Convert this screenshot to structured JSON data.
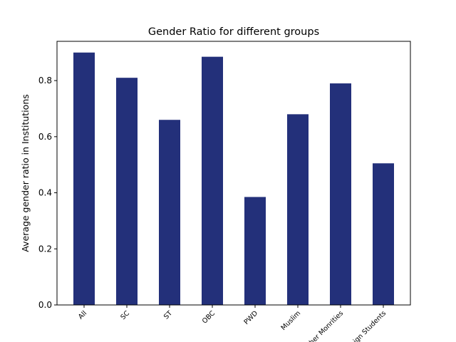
{
  "colors": {
    "bar": "#23307a",
    "axis": "#000000",
    "background": "#ffffff"
  },
  "chart_data": {
    "type": "bar",
    "title": "Gender Ratio for different groups",
    "xlabel": "",
    "ylabel": "Average gender ratio in Institutions",
    "categories": [
      "All",
      "SC",
      "ST",
      "OBC",
      "PWD",
      "Muslim",
      "Other Monrities",
      "Foreign Students"
    ],
    "values": [
      0.9,
      0.81,
      0.66,
      0.885,
      0.385,
      0.68,
      0.79,
      0.505
    ],
    "ylim": [
      0,
      0.94
    ],
    "yticks": [
      0.0,
      0.2,
      0.4,
      0.6,
      0.8
    ],
    "ytick_labels": [
      "0.0",
      "0.2",
      "0.4",
      "0.6",
      "0.8"
    ],
    "grid": false,
    "legend": "none"
  }
}
